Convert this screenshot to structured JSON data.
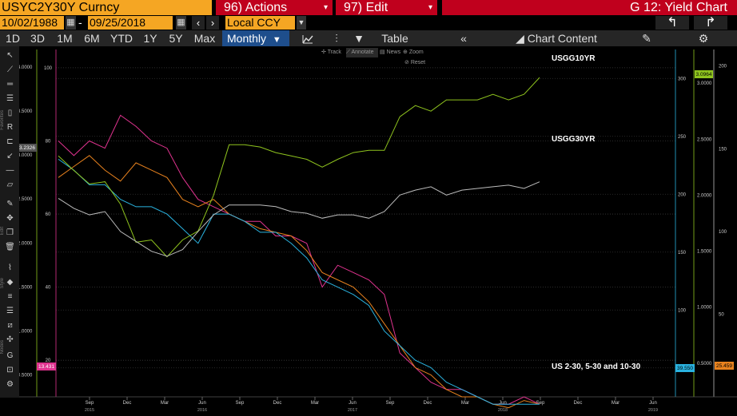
{
  "header": {
    "ticker": "USYC2Y30Y Curncy",
    "actions_label": "96) Actions",
    "edit_label": "97) Edit",
    "chart_title": "G 12: Yield Chart",
    "start_date": "10/02/1988",
    "end_date": "09/25/2018",
    "date_separator": "-",
    "currency": "Local CCY"
  },
  "period_tabs": [
    "1D",
    "3D",
    "1M",
    "6M",
    "YTD",
    "1Y",
    "5Y",
    "Max"
  ],
  "frequency": "Monthly",
  "toolbar": {
    "table_label": "Table",
    "chart_content_label": "Chart Content",
    "collapse_label": "«"
  },
  "mini_toolbar": [
    "Track",
    "Annotate",
    "News",
    "Zoom",
    "Reset"
  ],
  "side_labels": [
    "Favorites",
    "Edit",
    "Style",
    "Nodes"
  ],
  "colors": {
    "magenta": "#e0338f",
    "orange": "#e8821e",
    "cyan": "#2ab3e0",
    "green": "#8fc41e",
    "gray": "#bcbcbc",
    "menu_red": "#c0001d",
    "amber": "#f5a623"
  },
  "chart_data": {
    "type": "line",
    "x_ticks": [
      {
        "label": "Sep",
        "year": "2015"
      },
      {
        "label": "Dec",
        "year": ""
      },
      {
        "label": "Mar",
        "year": ""
      },
      {
        "label": "Jun",
        "year": "2016"
      },
      {
        "label": "Sep",
        "year": ""
      },
      {
        "label": "Dec",
        "year": ""
      },
      {
        "label": "Mar",
        "year": ""
      },
      {
        "label": "Jun",
        "year": "2017"
      },
      {
        "label": "Sep",
        "year": ""
      },
      {
        "label": "Dec",
        "year": ""
      },
      {
        "label": "Mar",
        "year": ""
      },
      {
        "label": "Jun",
        "year": "2018"
      },
      {
        "label": "Sep",
        "year": ""
      },
      {
        "label": "Dec",
        "year": ""
      },
      {
        "label": "Mar",
        "year": ""
      },
      {
        "label": "Jun",
        "year": "2019"
      }
    ],
    "axes": {
      "far_left": {
        "ticks": [
          "4.0000",
          "3.5000",
          "3.0000",
          "2.5000",
          "2.0000",
          "1.5000",
          "1.0000",
          "0.5000"
        ],
        "ylim": [
          0.25,
          4.2
        ]
      },
      "left": {
        "ticks": [
          "100",
          "80",
          "60",
          "40",
          "20"
        ],
        "ylim": [
          10,
          105
        ]
      },
      "right1": {
        "ticks": [
          "300",
          "250",
          "200",
          "150",
          "100",
          "50"
        ],
        "ylim": [
          25,
          325
        ]
      },
      "right2": {
        "ticks": [
          "3.0000",
          "2.5000",
          "2.0000",
          "1.5000",
          "1.0000",
          "0.5000"
        ],
        "ylim": [
          0.2,
          3.3
        ]
      },
      "right3": {
        "ticks": [
          "200",
          "150",
          "100",
          "50"
        ],
        "ylim": [
          0,
          210
        ]
      }
    },
    "last_value_labels": {
      "far_left_gray": "3.2326",
      "left_magenta": "13.431",
      "right1_cyan": "39.550",
      "right2_green": "3.0964",
      "right3_orange": "25.459"
    },
    "annotations": [
      "USGG10YR",
      "USGG30YR",
      "US 2-30, 5-30 and 10-30"
    ],
    "series": [
      {
        "name": "US 2-30",
        "color": "magenta",
        "axis": "left",
        "values": [
          80,
          76,
          80,
          78,
          87,
          84,
          80,
          78,
          70,
          64,
          62,
          60,
          58,
          58,
          54,
          54,
          52,
          40,
          46,
          44,
          42,
          38,
          22,
          18,
          14,
          12,
          12,
          10,
          8,
          8,
          10,
          8
        ]
      },
      {
        "name": "5-30",
        "color": "orange",
        "axis": "left",
        "values": [
          70,
          73,
          76,
          72,
          69,
          74,
          72,
          70,
          64,
          62,
          64,
          60,
          58,
          56,
          55,
          54,
          50,
          44,
          42,
          40,
          36,
          30,
          24,
          18,
          16,
          12,
          10,
          10,
          8,
          7,
          9,
          8
        ]
      },
      {
        "name": "10-30",
        "color": "cyan",
        "axis": "left",
        "values": [
          75,
          72,
          68,
          68,
          64,
          62,
          62,
          60,
          56,
          52,
          60,
          60,
          58,
          55,
          55,
          52,
          48,
          42,
          40,
          38,
          35,
          28,
          24,
          20,
          18,
          14,
          12,
          10,
          8,
          8,
          8,
          8
        ]
      },
      {
        "name": "USGG10YR",
        "color": "green",
        "axis": "right2",
        "values": [
          2.35,
          2.22,
          2.1,
          2.12,
          1.92,
          1.58,
          1.6,
          1.45,
          1.6,
          1.68,
          2.0,
          2.45,
          2.45,
          2.43,
          2.38,
          2.35,
          2.32,
          2.25,
          2.32,
          2.38,
          2.4,
          2.4,
          2.7,
          2.8,
          2.75,
          2.85,
          2.85,
          2.85,
          2.9,
          2.85,
          2.9,
          3.05
        ]
      },
      {
        "name": "USGG30YR",
        "color": "gray",
        "axis": "right3",
        "values": [
          120,
          114,
          110,
          112,
          100,
          94,
          88,
          85,
          89,
          100,
          110,
          116,
          116,
          116,
          115,
          112,
          111,
          108,
          110,
          110,
          108,
          112,
          122,
          125,
          127,
          122,
          125,
          126,
          127,
          128,
          126,
          130
        ]
      }
    ]
  }
}
